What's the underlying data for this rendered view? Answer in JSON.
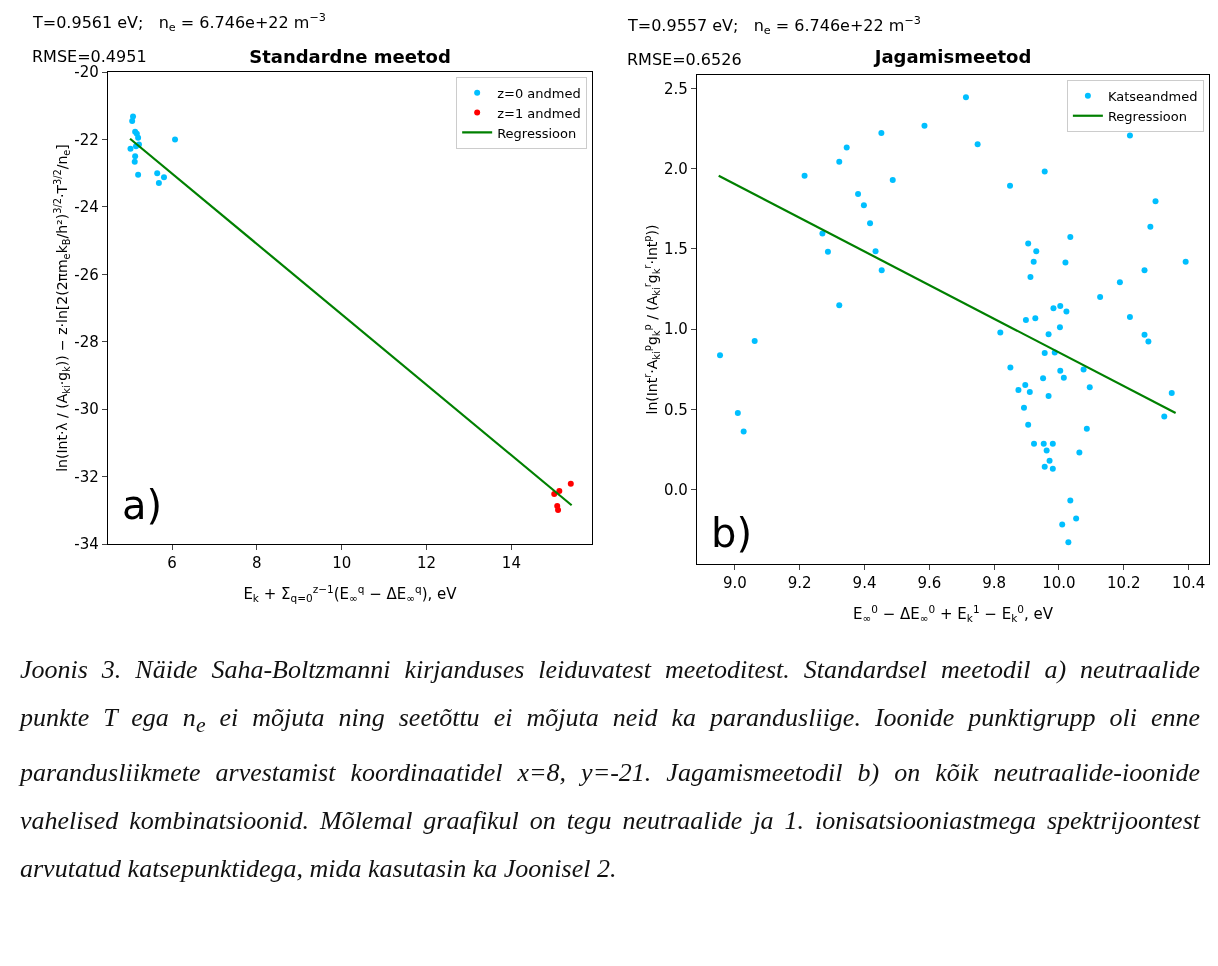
{
  "chart_data": [
    {
      "type": "scatter",
      "title": "Standardne meetod",
      "xlabel": "E$_{k}$ + Σ$_{q=0}$$^{z−1}$(E$_{∞}$$^{q}$ − ΔE$_{∞}$$^{q}$), eV",
      "ylabel": "ln(Int·λ / (A$_{ki}$·g$_{k}$)) − z·ln[2(2πm$_{e}$k$_{B}$/h²)$^{3/2}$·T$^{3/2}$/n$_{e}$]",
      "annotations": [
        "T=0.9561 eV;   n$_{e}$ = 6.746e+22 m$^{−3}$",
        "RMSE=0.4951",
        "a)"
      ],
      "series": [
        {
          "name": "z=0 andmed",
          "type": "scatter",
          "color": "#00bfff",
          "x": [
            5.08,
            5.06,
            5.13,
            5.17,
            5.2,
            5.22,
            5.02,
            5.15,
            5.13,
            5.12,
            5.2,
            5.65,
            5.69,
            5.81,
            6.07
          ],
          "values": [
            -21.32,
            -21.45,
            -21.77,
            -21.83,
            -21.95,
            -22.15,
            -22.28,
            -22.2,
            -22.5,
            -22.66,
            -23.05,
            -23.0,
            -23.29,
            -23.12,
            -22.0
          ]
        },
        {
          "name": "z=1 andmed",
          "type": "scatter",
          "color": "#ff0000",
          "x": [
            15.01,
            15.13,
            15.08,
            15.1,
            15.4
          ],
          "values": [
            -32.52,
            -32.43,
            -32.87,
            -32.99,
            -32.21
          ]
        },
        {
          "name": "Regressioon",
          "type": "line",
          "marker": "none",
          "color": "#008000",
          "x": [
            5.01,
            15.42
          ],
          "values": [
            -21.98,
            -32.85
          ]
        }
      ],
      "xlim": [
        4.49,
        15.9
      ],
      "ylim": [
        -34,
        -20
      ],
      "xticks": [
        6,
        8,
        10,
        12,
        14
      ],
      "yticks": [
        -34,
        -32,
        -30,
        -28,
        -26,
        -24,
        -22,
        -20
      ],
      "grid": false,
      "legend": "top right",
      "marker": "circle"
    },
    {
      "type": "scatter",
      "title": "Jagamismeetod",
      "xlabel": "E$_{∞}$$^{0}$ − ΔE$_{∞}$$^{0}$ + E$_{k}$$^{1}$ − E$_{k}$$^{0}$, eV",
      "ylabel": "ln(Int$^{r}$·A$_{ki}$$^{p}$g$_{k}$$^{p}$ / (A$_{ki}$$^{r}$g$_{k}$$^{r}$·Int$^{p}$))",
      "annotations": [
        "T=0.9557 eV;   n$_{e}$ = 6.746e+22 m$^{−3}$",
        "RMSE=0.6526",
        "b)",
        "Joonis 3. Näide Saha-Boltzmanni kirjanduses leiduvatest meetoditest. Standardsel meetodil a) neutraalide punkte T ega n$_{e}$ ei mõjuta ning seetõttu ei mõjuta neid ka parandusliige. Ioonide punktigrupp oli enne parandusliikmete arvestamist koordinaatidel x=8, y=-21. Jagamismeetodil b) on kõik neutraalide-ioonide vahelised kombinatsioonid. Mõlemal graafikul on tegu neutraalide ja 1. ionisatsiooniastmega spektrijoontest arvutatud katsepunktidega, mida kasutasin ka Joonisel 2."
      ],
      "series": [
        {
          "name": "Katseandmed",
          "type": "scatter",
          "color": "#00bfff",
          "x": [
            9.713,
            9.585,
            9.452,
            10.219,
            9.749,
            9.345,
            9.322,
            9.215,
            9.956,
            9.487,
            9.849,
            9.38,
            9.398,
            10.298,
            9.417,
            10.282,
            9.27,
            10.035,
            9.287,
            9.434,
            9.905,
            9.93,
            9.922,
            10.02,
            10.391,
            9.453,
            10.264,
            9.912,
            10.188,
            10.127,
            9.322,
            9.983,
            10.004,
            10.023,
            9.898,
            9.927,
            10.219,
            8.954,
            9.009,
            9.027,
            9.061,
            9.819,
            10.003,
            9.968,
            10.264,
            10.276,
            9.956,
            9.987,
            9.85,
            10.004,
            10.076,
            9.951,
            10.015,
            9.896,
            9.875,
            9.91,
            10.095,
            9.968,
            10.348,
            10.325,
            9.892,
            9.905,
            10.086,
            9.923,
            9.953,
            9.981,
            9.962,
            10.063,
            9.971,
            9.956,
            9.981,
            10.035,
            10.053,
            10.01,
            10.029
          ],
          "values": [
            2.446,
            2.268,
            2.222,
            2.207,
            2.153,
            2.133,
            2.044,
            1.956,
            1.983,
            1.929,
            1.894,
            1.842,
            1.773,
            1.798,
            1.66,
            1.638,
            1.596,
            1.574,
            1.483,
            1.485,
            1.534,
            1.485,
            1.421,
            1.416,
            1.421,
            1.367,
            1.367,
            1.325,
            1.293,
            1.2,
            1.15,
            1.131,
            1.145,
            1.111,
            1.057,
            1.069,
            1.076,
            0.837,
            0.478,
            0.362,
            0.926,
            0.98,
            1.012,
            0.968,
            0.966,
            0.924,
            0.852,
            0.855,
            0.761,
            0.741,
            0.749,
            0.695,
            0.697,
            0.653,
            0.621,
            0.608,
            0.638,
            0.584,
            0.603,
            0.456,
            0.51,
            0.404,
            0.379,
            0.287,
            0.287,
            0.287,
            0.244,
            0.232,
            0.18,
            0.143,
            0.13,
            -0.067,
            -0.18,
            -0.217,
            -0.328
          ]
        },
        {
          "name": "Regressioon",
          "type": "line",
          "marker": "none",
          "color": "#008000",
          "x": [
            8.95,
            10.36
          ],
          "values": [
            1.956,
            0.478
          ]
        }
      ],
      "xlim": [
        8.883,
        10.463
      ],
      "ylim": [
        -0.463,
        2.584
      ],
      "xticks": [
        {
          "value": 9,
          "label": "9.0"
        },
        9.2,
        9.4,
        9.6,
        9.8,
        {
          "value": 10,
          "label": "10.0"
        },
        10.2,
        10.4
      ],
      "yticks": [
        {
          "value": 0,
          "label": "0.0"
        },
        0.5,
        {
          "value": 1,
          "label": "1.0"
        },
        1.5,
        {
          "value": 2,
          "label": "2.0"
        },
        2.5
      ],
      "grid": false,
      "legend": "top right",
      "marker": "circle"
    }
  ]
}
